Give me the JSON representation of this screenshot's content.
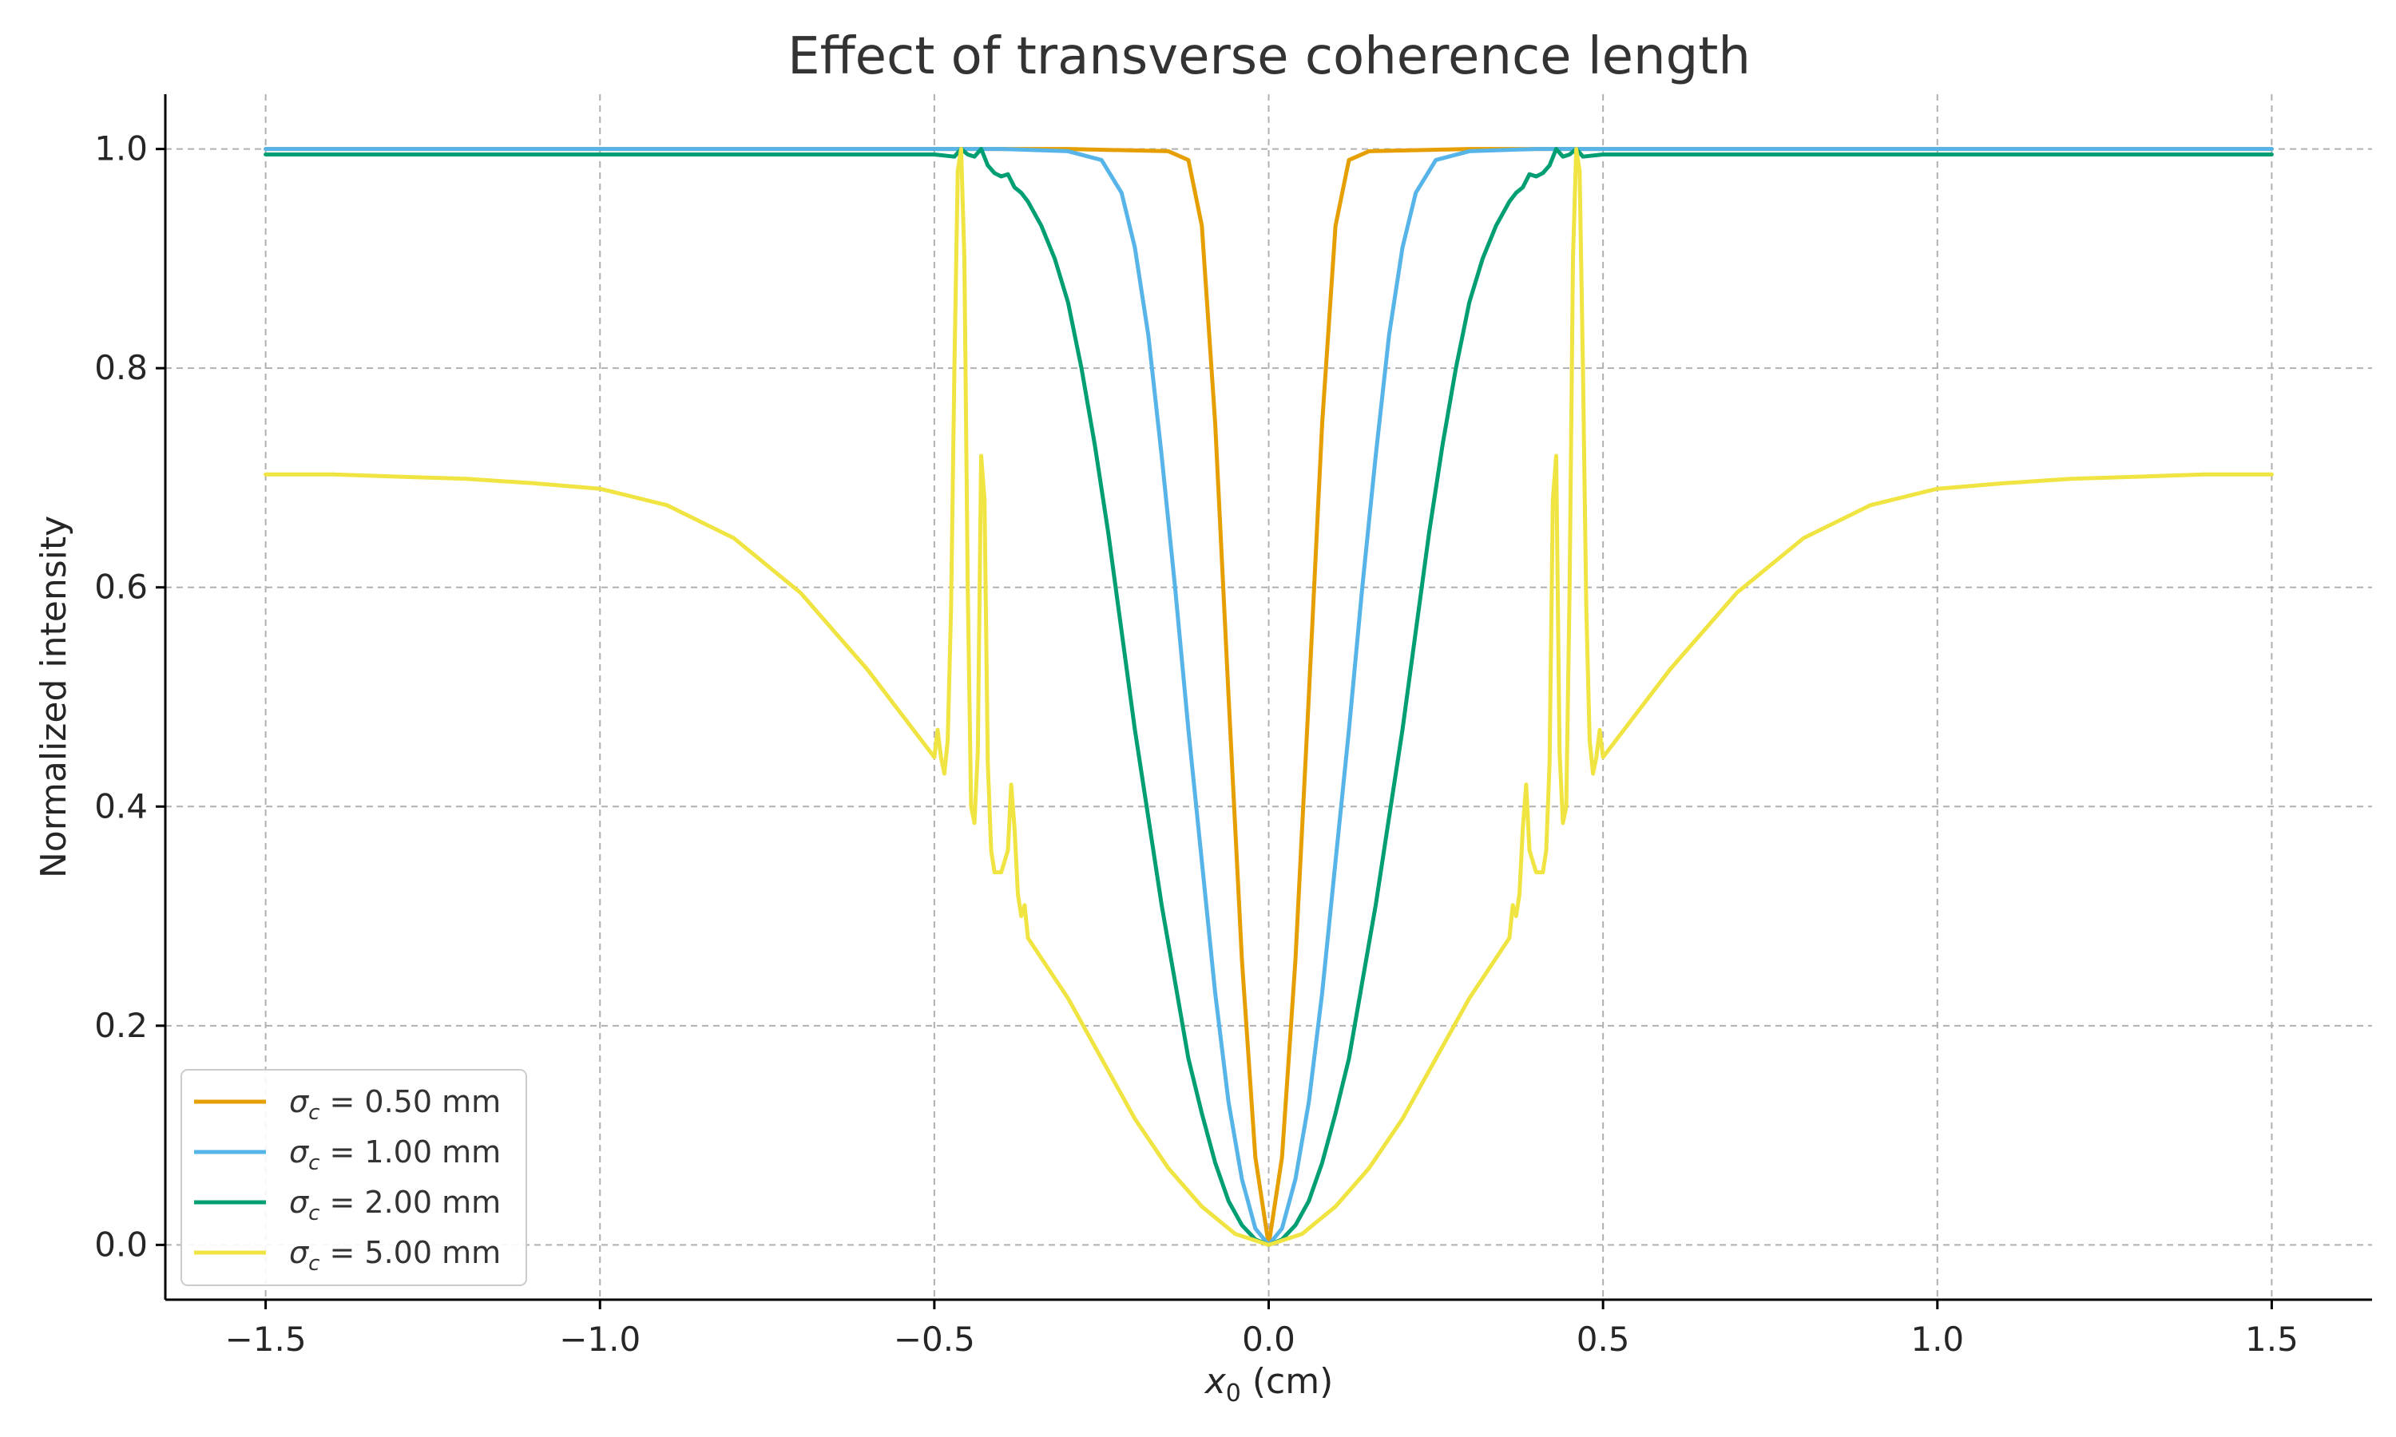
{
  "chart_data": {
    "type": "line",
    "title": "Effect of transverse coherence length",
    "xlabel_symbol": "x",
    "xlabel_sub": "0",
    "xlabel_unit": " (cm)",
    "ylabel": "Normalized intensity",
    "xlim": [
      -1.65,
      1.65
    ],
    "ylim": [
      -0.05,
      1.05
    ],
    "x_ticks": [
      -1.5,
      -1.0,
      -0.5,
      0.0,
      0.5,
      1.0,
      1.5
    ],
    "x_tick_labels": [
      "−1.5",
      "−1.0",
      "−0.5",
      "0.0",
      "0.5",
      "1.0",
      "1.5"
    ],
    "y_ticks": [
      0.0,
      0.2,
      0.4,
      0.6,
      0.8,
      1.0
    ],
    "y_tick_labels": [
      "0.0",
      "0.2",
      "0.4",
      "0.6",
      "0.8",
      "1.0"
    ],
    "grid": true,
    "legend_position": "lower-left",
    "series": [
      {
        "name": "σc = 0.50 mm",
        "legend_sigma": "σ",
        "legend_sub": "c",
        "legend_value": " = 0.50 mm",
        "color": "#E69F00",
        "points": [
          [
            -1.5,
            1.0
          ],
          [
            -0.3,
            1.0
          ],
          [
            -0.15,
            0.998
          ],
          [
            -0.12,
            0.99
          ],
          [
            -0.1,
            0.93
          ],
          [
            -0.08,
            0.75
          ],
          [
            -0.06,
            0.5
          ],
          [
            -0.04,
            0.26
          ],
          [
            -0.02,
            0.08
          ],
          [
            0.0,
            0.0
          ],
          [
            0.02,
            0.08
          ],
          [
            0.04,
            0.26
          ],
          [
            0.06,
            0.5
          ],
          [
            0.08,
            0.75
          ],
          [
            0.1,
            0.93
          ],
          [
            0.12,
            0.99
          ],
          [
            0.15,
            0.998
          ],
          [
            0.3,
            1.0
          ],
          [
            1.5,
            1.0
          ]
        ]
      },
      {
        "name": "σc = 1.00 mm",
        "legend_sigma": "σ",
        "legend_sub": "c",
        "legend_value": " = 1.00 mm",
        "color": "#56B4E9",
        "points": [
          [
            -1.5,
            1.0
          ],
          [
            -0.4,
            1.0
          ],
          [
            -0.3,
            0.998
          ],
          [
            -0.25,
            0.99
          ],
          [
            -0.22,
            0.96
          ],
          [
            -0.2,
            0.91
          ],
          [
            -0.18,
            0.83
          ],
          [
            -0.16,
            0.72
          ],
          [
            -0.14,
            0.6
          ],
          [
            -0.12,
            0.47
          ],
          [
            -0.1,
            0.35
          ],
          [
            -0.08,
            0.23
          ],
          [
            -0.06,
            0.13
          ],
          [
            -0.04,
            0.06
          ],
          [
            -0.02,
            0.015
          ],
          [
            0.0,
            0.0
          ],
          [
            0.02,
            0.015
          ],
          [
            0.04,
            0.06
          ],
          [
            0.06,
            0.13
          ],
          [
            0.08,
            0.23
          ],
          [
            0.1,
            0.35
          ],
          [
            0.12,
            0.47
          ],
          [
            0.14,
            0.6
          ],
          [
            0.16,
            0.72
          ],
          [
            0.18,
            0.83
          ],
          [
            0.2,
            0.91
          ],
          [
            0.22,
            0.96
          ],
          [
            0.25,
            0.99
          ],
          [
            0.3,
            0.998
          ],
          [
            0.4,
            1.0
          ],
          [
            1.5,
            1.0
          ]
        ]
      },
      {
        "name": "σc = 2.00 mm",
        "legend_sigma": "σ",
        "legend_sub": "c",
        "legend_value": " = 2.00 mm",
        "color": "#009E73",
        "points": [
          [
            -1.5,
            0.995
          ],
          [
            -0.5,
            0.995
          ],
          [
            -0.47,
            0.993
          ],
          [
            -0.46,
            1.0
          ],
          [
            -0.45,
            0.995
          ],
          [
            -0.44,
            0.993
          ],
          [
            -0.43,
            1.0
          ],
          [
            -0.42,
            0.985
          ],
          [
            -0.41,
            0.978
          ],
          [
            -0.4,
            0.975
          ],
          [
            -0.39,
            0.977
          ],
          [
            -0.38,
            0.965
          ],
          [
            -0.37,
            0.96
          ],
          [
            -0.36,
            0.952
          ],
          [
            -0.34,
            0.93
          ],
          [
            -0.32,
            0.9
          ],
          [
            -0.3,
            0.86
          ],
          [
            -0.28,
            0.8
          ],
          [
            -0.26,
            0.73
          ],
          [
            -0.24,
            0.65
          ],
          [
            -0.22,
            0.56
          ],
          [
            -0.2,
            0.47
          ],
          [
            -0.18,
            0.39
          ],
          [
            -0.16,
            0.31
          ],
          [
            -0.14,
            0.24
          ],
          [
            -0.12,
            0.17
          ],
          [
            -0.1,
            0.12
          ],
          [
            -0.08,
            0.075
          ],
          [
            -0.06,
            0.04
          ],
          [
            -0.04,
            0.018
          ],
          [
            -0.02,
            0.005
          ],
          [
            0.0,
            0.0
          ],
          [
            0.02,
            0.005
          ],
          [
            0.04,
            0.018
          ],
          [
            0.06,
            0.04
          ],
          [
            0.08,
            0.075
          ],
          [
            0.1,
            0.12
          ],
          [
            0.12,
            0.17
          ],
          [
            0.14,
            0.24
          ],
          [
            0.16,
            0.31
          ],
          [
            0.18,
            0.39
          ],
          [
            0.2,
            0.47
          ],
          [
            0.22,
            0.56
          ],
          [
            0.24,
            0.65
          ],
          [
            0.26,
            0.73
          ],
          [
            0.28,
            0.8
          ],
          [
            0.3,
            0.86
          ],
          [
            0.32,
            0.9
          ],
          [
            0.34,
            0.93
          ],
          [
            0.36,
            0.952
          ],
          [
            0.37,
            0.96
          ],
          [
            0.38,
            0.965
          ],
          [
            0.39,
            0.977
          ],
          [
            0.4,
            0.975
          ],
          [
            0.41,
            0.978
          ],
          [
            0.42,
            0.985
          ],
          [
            0.43,
            1.0
          ],
          [
            0.44,
            0.993
          ],
          [
            0.45,
            0.995
          ],
          [
            0.46,
            1.0
          ],
          [
            0.47,
            0.993
          ],
          [
            0.5,
            0.995
          ],
          [
            1.5,
            0.995
          ]
        ]
      },
      {
        "name": "σc = 5.00 mm",
        "legend_sigma": "σ",
        "legend_sub": "c",
        "legend_value": " = 5.00 mm",
        "color": "#F0E442",
        "points": [
          [
            -1.5,
            0.703
          ],
          [
            -1.4,
            0.703
          ],
          [
            -1.3,
            0.701
          ],
          [
            -1.2,
            0.699
          ],
          [
            -1.1,
            0.695
          ],
          [
            -1.0,
            0.69
          ],
          [
            -0.9,
            0.675
          ],
          [
            -0.8,
            0.645
          ],
          [
            -0.7,
            0.595
          ],
          [
            -0.6,
            0.525
          ],
          [
            -0.5,
            0.445
          ],
          [
            -0.495,
            0.47
          ],
          [
            -0.49,
            0.445
          ],
          [
            -0.485,
            0.43
          ],
          [
            -0.48,
            0.46
          ],
          [
            -0.475,
            0.58
          ],
          [
            -0.47,
            0.8
          ],
          [
            -0.465,
            0.98
          ],
          [
            -0.46,
            1.0
          ],
          [
            -0.455,
            0.9
          ],
          [
            -0.45,
            0.6
          ],
          [
            -0.445,
            0.4
          ],
          [
            -0.44,
            0.385
          ],
          [
            -0.435,
            0.45
          ],
          [
            -0.43,
            0.72
          ],
          [
            -0.425,
            0.68
          ],
          [
            -0.42,
            0.44
          ],
          [
            -0.415,
            0.36
          ],
          [
            -0.41,
            0.34
          ],
          [
            -0.4,
            0.34
          ],
          [
            -0.39,
            0.36
          ],
          [
            -0.385,
            0.42
          ],
          [
            -0.38,
            0.38
          ],
          [
            -0.375,
            0.32
          ],
          [
            -0.37,
            0.3
          ],
          [
            -0.365,
            0.31
          ],
          [
            -0.36,
            0.28
          ],
          [
            -0.3,
            0.225
          ],
          [
            -0.25,
            0.17
          ],
          [
            -0.2,
            0.115
          ],
          [
            -0.15,
            0.07
          ],
          [
            -0.1,
            0.035
          ],
          [
            -0.05,
            0.01
          ],
          [
            0.0,
            0.0
          ],
          [
            0.05,
            0.01
          ],
          [
            0.1,
            0.035
          ],
          [
            0.15,
            0.07
          ],
          [
            0.2,
            0.115
          ],
          [
            0.25,
            0.17
          ],
          [
            0.3,
            0.225
          ],
          [
            0.36,
            0.28
          ],
          [
            0.365,
            0.31
          ],
          [
            0.37,
            0.3
          ],
          [
            0.375,
            0.32
          ],
          [
            0.38,
            0.38
          ],
          [
            0.385,
            0.42
          ],
          [
            0.39,
            0.36
          ],
          [
            0.4,
            0.34
          ],
          [
            0.41,
            0.34
          ],
          [
            0.415,
            0.36
          ],
          [
            0.42,
            0.44
          ],
          [
            0.425,
            0.68
          ],
          [
            0.43,
            0.72
          ],
          [
            0.435,
            0.45
          ],
          [
            0.44,
            0.385
          ],
          [
            0.445,
            0.4
          ],
          [
            0.45,
            0.6
          ],
          [
            0.455,
            0.9
          ],
          [
            0.46,
            1.0
          ],
          [
            0.465,
            0.98
          ],
          [
            0.47,
            0.8
          ],
          [
            0.475,
            0.58
          ],
          [
            0.48,
            0.46
          ],
          [
            0.485,
            0.43
          ],
          [
            0.49,
            0.445
          ],
          [
            0.495,
            0.47
          ],
          [
            0.5,
            0.445
          ],
          [
            0.6,
            0.525
          ],
          [
            0.7,
            0.595
          ],
          [
            0.8,
            0.645
          ],
          [
            0.9,
            0.675
          ],
          [
            1.0,
            0.69
          ],
          [
            1.1,
            0.695
          ],
          [
            1.2,
            0.699
          ],
          [
            1.3,
            0.701
          ],
          [
            1.4,
            0.703
          ],
          [
            1.5,
            0.703
          ]
        ]
      }
    ]
  }
}
